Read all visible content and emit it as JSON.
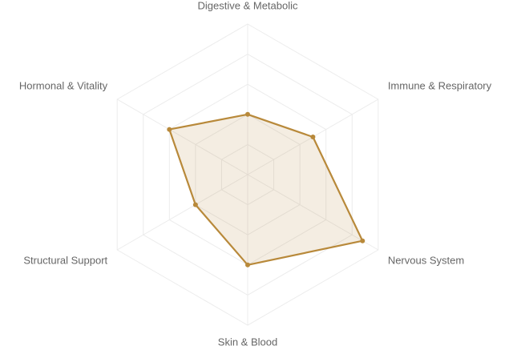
{
  "chart_data": {
    "type": "radar",
    "categories": [
      "Digestive & Metabolic",
      "Immune & Respiratory",
      "Nervous System",
      "Skin & Blood",
      "Structural Support",
      "Hormonal & Vitality"
    ],
    "values": [
      40,
      50,
      88,
      60,
      40,
      60
    ],
    "color": "#b8893a",
    "rlim": [
      0,
      100
    ],
    "rticks": [
      20,
      40,
      60,
      80,
      100
    ],
    "grid": true
  }
}
